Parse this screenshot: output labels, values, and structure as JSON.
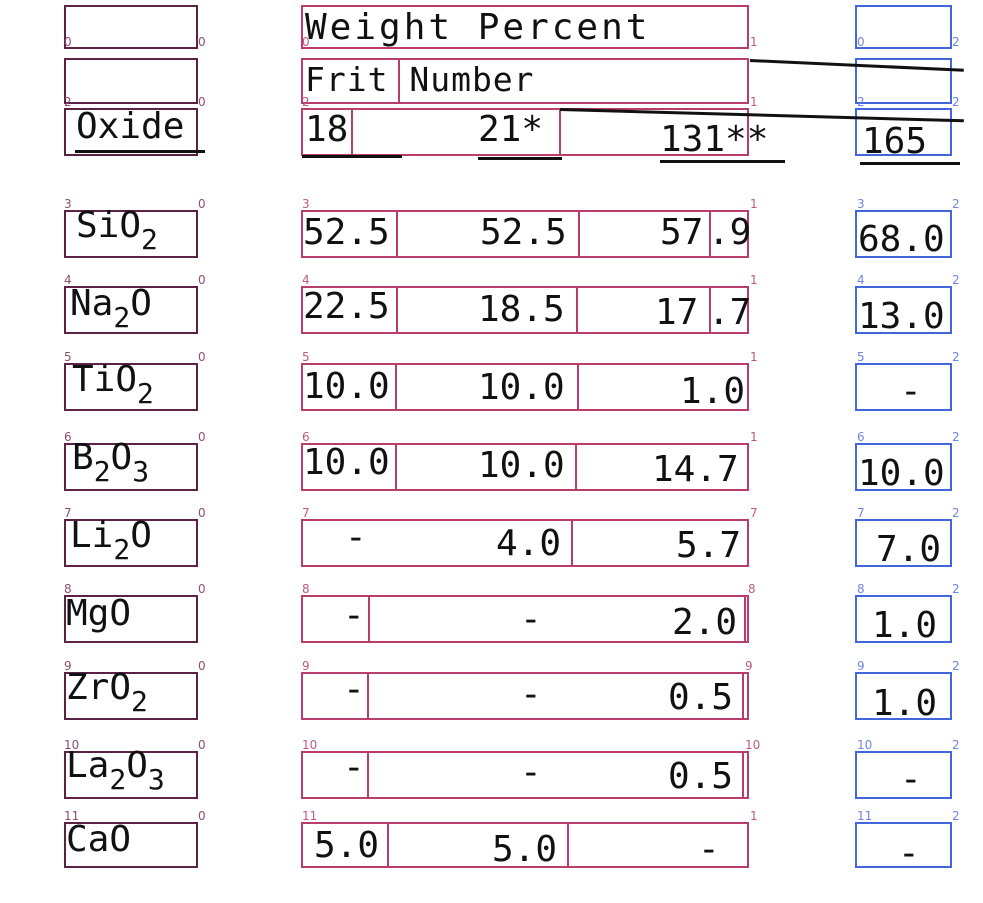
{
  "header": {
    "title": "Weight Percent",
    "subtitle": "Frit Number",
    "oxide_label": "Oxide"
  },
  "frits": [
    "18",
    "21*",
    "131**",
    "165"
  ],
  "rows": [
    {
      "oxide": "SiO",
      "sub": "2",
      "v18": "52.5",
      "v21": "52.5",
      "v131a": "57",
      "v131b": ".9",
      "v165": "68.0"
    },
    {
      "oxide": "Na",
      "sub": "2",
      "oxide2": "O",
      "v18": "22.5",
      "v21": "18.5",
      "v131a": "17",
      "v131b": ".7",
      "v165": "13.0"
    },
    {
      "oxide": "TiO",
      "sub": "2",
      "v18": "10.0",
      "v21": "10.0",
      "v131": "1.0",
      "v165": "-"
    },
    {
      "oxide": "B",
      "sub": "2",
      "oxide2": "O",
      "sub2": "3",
      "v18": "10.0",
      "v21": "10.0",
      "v131": "14.7",
      "v165": "10.0"
    },
    {
      "oxide": "Li",
      "sub": "2",
      "oxide2": "O",
      "v18": "-",
      "v21": "4.0",
      "v131": "5.7",
      "v165": "7.0"
    },
    {
      "oxide": "MgO",
      "v18": "-",
      "v21": "-",
      "v131": "2.0",
      "v165": "1.0"
    },
    {
      "oxide": "ZrO",
      "sub": "2",
      "v18": "-",
      "v21": "-",
      "v131": "0.5",
      "v165": "1.0"
    },
    {
      "oxide": "La",
      "sub": "2",
      "oxide2": "O",
      "sub2": "3",
      "v18": "-",
      "v21": "-",
      "v131": "0.5",
      "v165": "-"
    },
    {
      "oxide": "CaO",
      "v18": "5.0",
      "v21": "5.0",
      "v131": "-",
      "v165": "-"
    }
  ],
  "index_labels": {
    "row": [
      "0",
      "1",
      "2",
      "3",
      "4",
      "5",
      "6",
      "7",
      "8",
      "9",
      "10",
      "11"
    ],
    "col": [
      "0",
      "1",
      "2"
    ]
  },
  "colors": {
    "col0": "#5a2245",
    "col1": "#b83d6c",
    "col2": "#4466dd"
  }
}
